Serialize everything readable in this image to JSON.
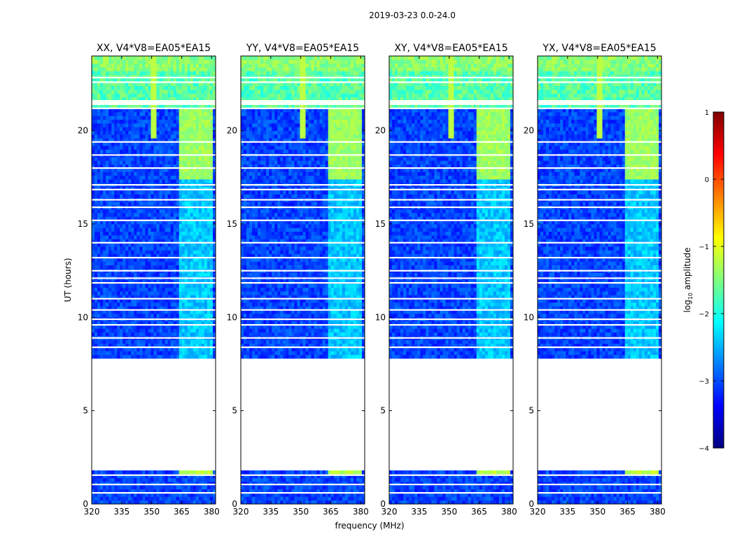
{
  "figure_title": "2019-03-23 0.0-24.0",
  "chart_data": [
    {
      "type": "heatmap",
      "title": "XX, V4*V8=EA05*EA15",
      "xlabel": "",
      "ylabel": "UT (hours)",
      "xlim": [
        320,
        382
      ],
      "ylim": [
        0,
        24
      ],
      "x_ticks": [
        "320",
        "335",
        "350",
        "365",
        "380"
      ],
      "y_ticks": [
        "0",
        "5",
        "10",
        "15",
        "20"
      ],
      "value_label": "log10 amplitude",
      "data_coverage_hours": [
        [
          0.0,
          1.8
        ],
        [
          7.8,
          24.0
        ]
      ],
      "rfi_bands_mhz": [
        [
          363,
          380
        ]
      ],
      "rfi_hours": [
        [
          17.2,
          21.0
        ],
        [
          0.0,
          1.8
        ]
      ],
      "typical_log10_amplitude": -2.8
    },
    {
      "type": "heatmap",
      "title": "YY, V4*V8=EA05*EA15",
      "xlabel": "frequency (MHz)",
      "ylabel": "",
      "xlim": [
        320,
        382
      ],
      "ylim": [
        0,
        24
      ],
      "x_ticks": [
        "320",
        "335",
        "350",
        "365",
        "380"
      ],
      "y_ticks": [
        "0",
        "5",
        "10",
        "15",
        "20"
      ],
      "value_label": "log10 amplitude",
      "data_coverage_hours": [
        [
          0.0,
          1.8
        ],
        [
          7.8,
          24.0
        ]
      ],
      "rfi_bands_mhz": [
        [
          363,
          380
        ]
      ],
      "rfi_hours": [
        [
          17.2,
          21.0
        ],
        [
          0.0,
          1.8
        ]
      ],
      "typical_log10_amplitude": -2.8
    },
    {
      "type": "heatmap",
      "title": "XY, V4*V8=EA05*EA15",
      "xlabel": "",
      "ylabel": "",
      "xlim": [
        320,
        382
      ],
      "ylim": [
        0,
        24
      ],
      "x_ticks": [
        "320",
        "335",
        "350",
        "365",
        "380"
      ],
      "y_ticks": [
        "0",
        "5",
        "10",
        "15",
        "20"
      ],
      "value_label": "log10 amplitude",
      "data_coverage_hours": [
        [
          0.0,
          1.8
        ],
        [
          7.8,
          24.0
        ]
      ],
      "rfi_bands_mhz": [
        [
          363,
          380
        ]
      ],
      "rfi_hours": [
        [
          17.2,
          21.0
        ],
        [
          0.0,
          1.8
        ]
      ],
      "typical_log10_amplitude": -2.8
    },
    {
      "type": "heatmap",
      "title": "YX, V4*V8=EA05*EA15",
      "xlabel": "",
      "ylabel": "",
      "xlim": [
        320,
        382
      ],
      "ylim": [
        0,
        24
      ],
      "x_ticks": [
        "320",
        "335",
        "350",
        "365",
        "380"
      ],
      "y_ticks": [
        "0",
        "5",
        "10",
        "15",
        "20"
      ],
      "value_label": "log10 amplitude",
      "data_coverage_hours": [
        [
          0.0,
          1.8
        ],
        [
          7.8,
          24.0
        ]
      ],
      "rfi_bands_mhz": [
        [
          363,
          380
        ]
      ],
      "rfi_hours": [
        [
          17.2,
          21.0
        ],
        [
          0.0,
          1.8
        ]
      ],
      "typical_log10_amplitude": -2.8
    }
  ],
  "colorbar": {
    "label_prefix": "log",
    "label_sub": "10",
    "label_suffix": " amplitude",
    "range": [
      -4,
      1
    ],
    "ticks": [
      "1",
      "0",
      "−1",
      "−2",
      "−3",
      "−4"
    ],
    "colormap": "jet",
    "colors": [
      "#00007f",
      "#0000ff",
      "#007fff",
      "#00ffff",
      "#7fff7f",
      "#ffff00",
      "#ff7f00",
      "#ff0000",
      "#7f0000"
    ]
  }
}
